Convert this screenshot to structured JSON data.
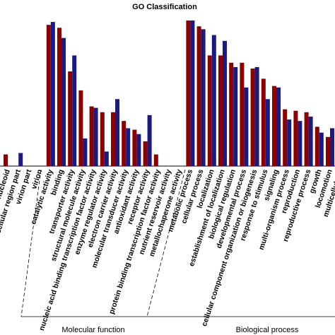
{
  "chart_data": {
    "type": "bar",
    "title": "GO Classification",
    "xlabel": "",
    "ylabel": "",
    "grid": false,
    "legend": "none",
    "colors": {
      "series1": "#8b0000",
      "series2": "#1a1a80"
    },
    "groups": [
      {
        "name": "",
        "categories": [
          "nucleoid",
          "extracellular region part",
          "virion part",
          "virion"
        ]
      },
      {
        "name": "Molecular function",
        "categories": [
          "catalytic activity",
          "binding",
          "transporter activity",
          "structural molecule activity",
          "nucleic acid binding transcription factor activity",
          "enzyme regulator activity",
          "electron carrier activity",
          "molecular transducer activity",
          "antioxidant activity",
          "receptor activity",
          "protein binding transcription factor activity",
          "nutrient reservoir activity",
          "metallochaperone activity"
        ]
      },
      {
        "name": "Biological process",
        "categories": [
          "metabolic process",
          "cellular process",
          "localization",
          "establishment of localization",
          "biological regulation",
          "developmental process",
          "cellular component organization or biogenesis",
          "response to stimulus",
          "signaling",
          "multi-organism process",
          "reproduction",
          "reproductive process",
          "growth",
          "locomotion",
          "multicellular..."
        ]
      }
    ],
    "categories": [
      "nucleoid",
      "extracellular region part",
      "virion part",
      "virion",
      "catalytic activity",
      "binding",
      "transporter activity",
      "structural molecule activity",
      "nucleic acid binding transcription factor activity",
      "enzyme regulator activity",
      "electron carrier activity",
      "molecular transducer activity",
      "antioxidant activity",
      "receptor activity",
      "protein binding transcription factor activity",
      "nutrient reservoir activity",
      "metallochaperone activity",
      "metabolic process",
      "cellular process",
      "localization",
      "establishment of localization",
      "biological regulation",
      "developmental process",
      "cellular component organization or biogenesis",
      "response to stimulus",
      "signaling",
      "multi-organism process",
      "reproduction",
      "reproductive process",
      "growth",
      "locomotion",
      "multicellular..."
    ],
    "series": [
      {
        "values": [
          0.08,
          0.0,
          0.0,
          0.0,
          0.97,
          0.95,
          0.65,
          0.52,
          0.41,
          0.37,
          0.37,
          0.31,
          0.25,
          0.17,
          0.08,
          0.0,
          0.0,
          1.0,
          0.96,
          0.76,
          0.76,
          0.71,
          0.71,
          0.67,
          0.6,
          0.55,
          0.39,
          0.38,
          0.37,
          0.27,
          0.2,
          0.0
        ]
      },
      {
        "values": [
          0.0,
          0.09,
          0.0,
          0.0,
          0.99,
          0.88,
          0.76,
          0.19,
          0.4,
          0.1,
          0.46,
          0.26,
          0.22,
          0.35,
          0.0,
          0.0,
          0.0,
          1.0,
          0.94,
          0.9,
          0.86,
          0.68,
          0.54,
          0.68,
          0.46,
          0.54,
          0.32,
          0.31,
          0.34,
          0.23,
          0.26,
          0.0
        ]
      }
    ]
  }
}
